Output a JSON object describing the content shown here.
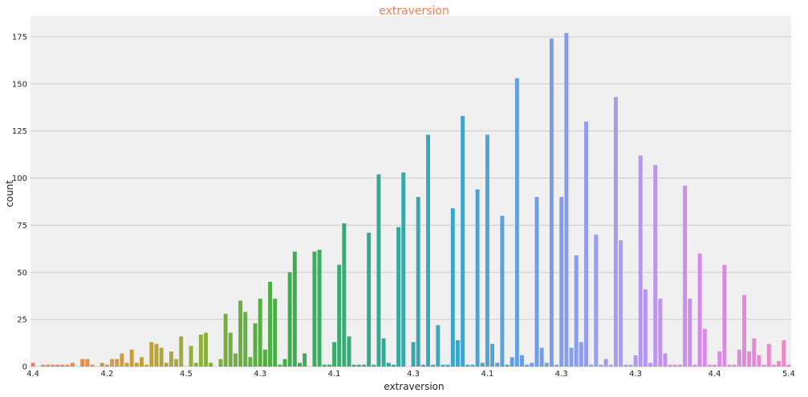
{
  "chart_data": {
    "type": "bar",
    "title": "extraversion",
    "xlabel": "extraversion",
    "ylabel": "count",
    "ylim": [
      0,
      186
    ],
    "yticks": [
      0,
      25,
      50,
      75,
      100,
      125,
      150,
      175
    ],
    "grid": true,
    "legend": "none",
    "x_tick_labels_visible_partial": [
      "4.4",
      "4.2",
      "4.5",
      "4.3",
      "4.1",
      "4.3",
      "4.1",
      "4.3",
      "4.3",
      "4.4",
      "5.4"
    ],
    "values": [
      2,
      0,
      1,
      1,
      1,
      1,
      1,
      1,
      2,
      0,
      4,
      4,
      1,
      0,
      2,
      1,
      4,
      4,
      7,
      2,
      9,
      2,
      5,
      1,
      13,
      12,
      10,
      2,
      8,
      4,
      16,
      0,
      11,
      2,
      17,
      18,
      2,
      0,
      4,
      28,
      18,
      7,
      35,
      29,
      5,
      23,
      36,
      9,
      45,
      36,
      1,
      4,
      50,
      61,
      2,
      7,
      0,
      61,
      62,
      1,
      1,
      13,
      54,
      76,
      16,
      1,
      1,
      1,
      71,
      1,
      102,
      15,
      2,
      1,
      74,
      103,
      0,
      13,
      90,
      1,
      123,
      1,
      22,
      1,
      1,
      84,
      14,
      133,
      1,
      1,
      94,
      2,
      123,
      12,
      2,
      80,
      1,
      5,
      153,
      6,
      1,
      2,
      90,
      10,
      2,
      174,
      1,
      90,
      177,
      10,
      59,
      13,
      130,
      1,
      70,
      1,
      4,
      1,
      143,
      67,
      1,
      1,
      6,
      112,
      41,
      2,
      107,
      36,
      7,
      1,
      1,
      1,
      96,
      36,
      1,
      60,
      20,
      1,
      1,
      8,
      54,
      1,
      1,
      9,
      38,
      8,
      15,
      6,
      1,
      12,
      1,
      3,
      14,
      1
    ],
    "colors": {
      "background": "#f0f0f0",
      "grid": "#cbcbcb",
      "title": "#f27f54",
      "palette_stops": [
        "#e8826a",
        "#d89a3c",
        "#8fb03b",
        "#3fae45",
        "#36a98a",
        "#3aa6c9",
        "#6e9ee8",
        "#a99cee",
        "#d68aea",
        "#eb8ac3"
      ]
    }
  }
}
